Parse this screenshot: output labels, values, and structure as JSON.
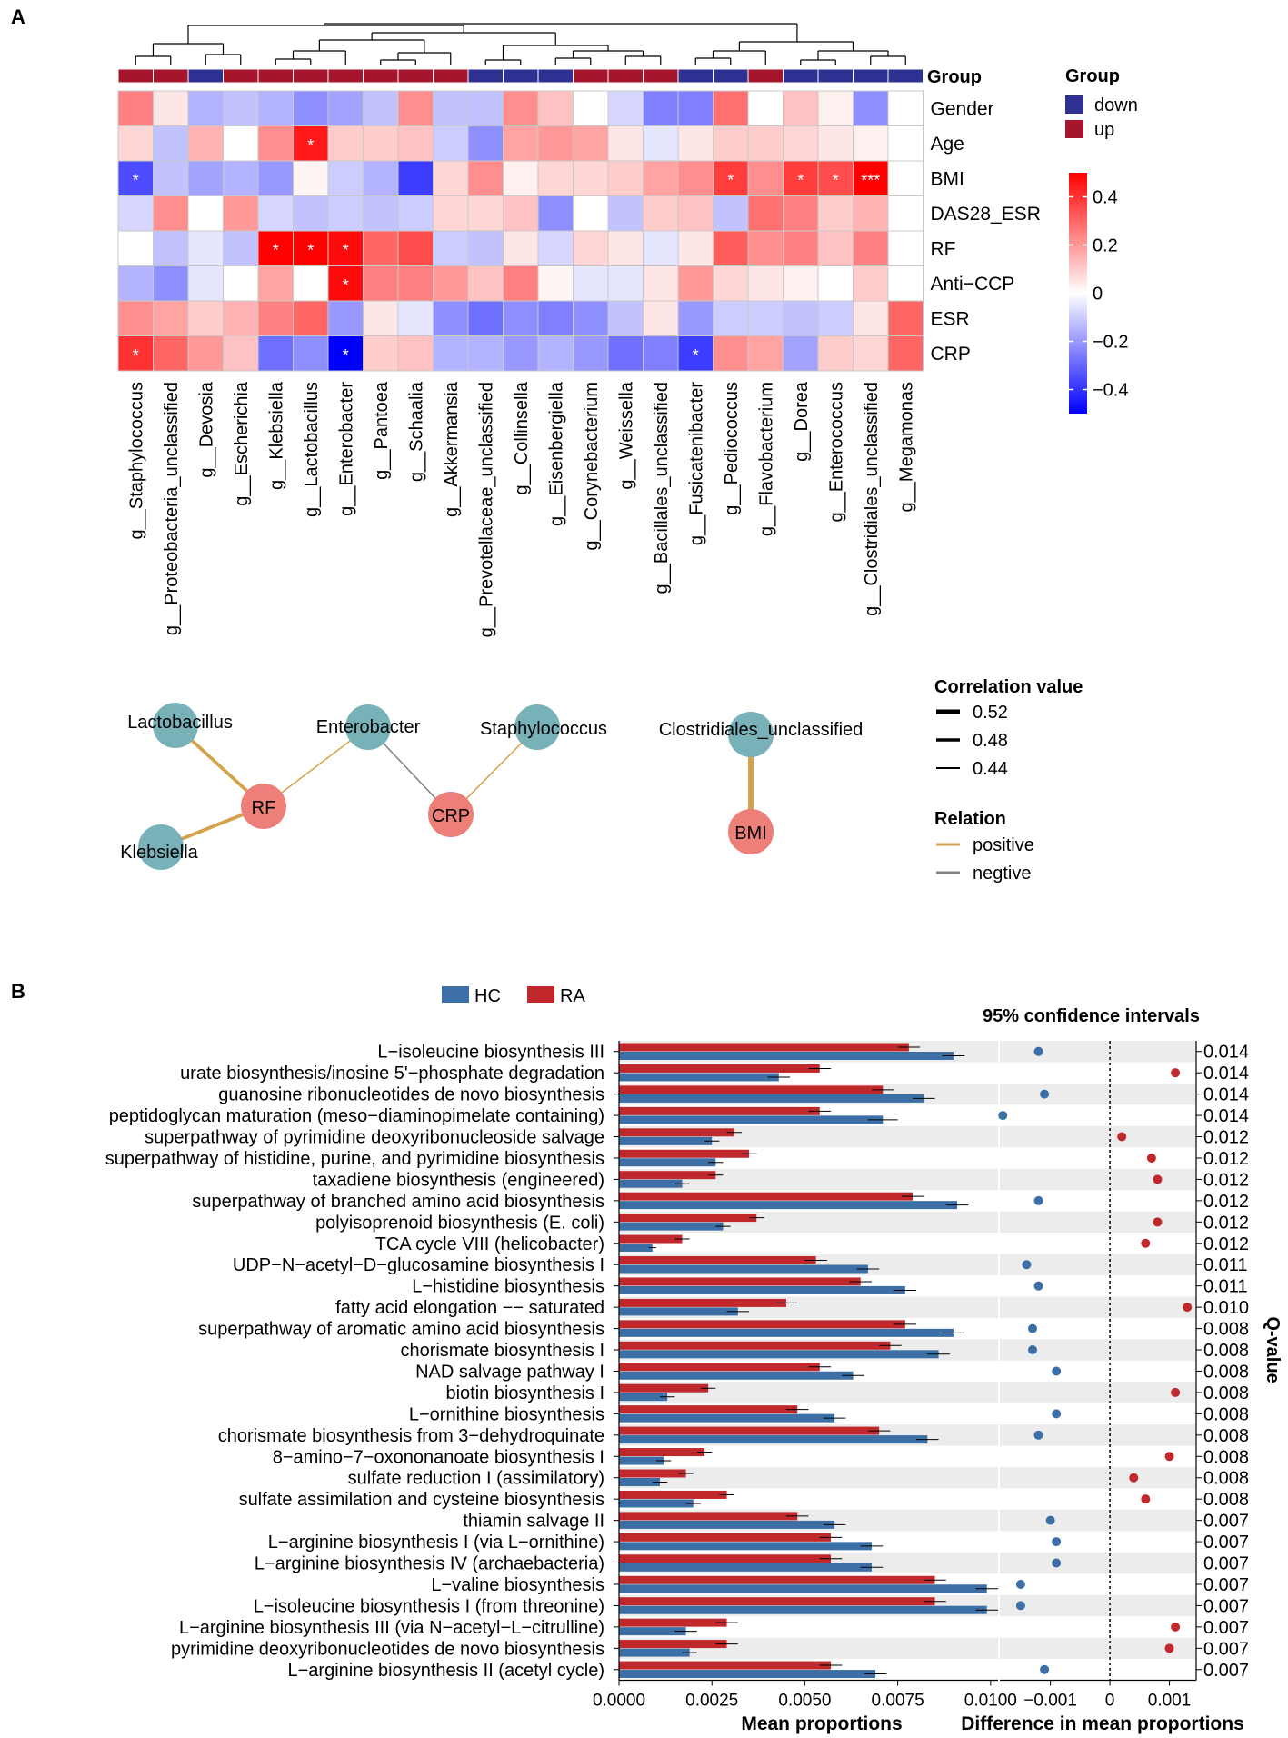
{
  "panel_a": {
    "label": "A",
    "group_legend": {
      "title": "Group",
      "down": "down",
      "up": "up",
      "down_color": "#2f3192",
      "up_color": "#a5152b"
    },
    "group_row_label": "Group",
    "colorbar": {
      "ticks": [
        "0.4",
        "0.2",
        "0",
        "−0.2",
        "−0.4"
      ],
      "min": -0.5,
      "max": 0.5
    },
    "network": {
      "legend_title": "Correlation value",
      "widths": [
        "0.52",
        "0.48",
        "0.44"
      ],
      "relation_title": "Relation",
      "positive": "positive",
      "negative": "negtive",
      "positive_color": "#d4a24a",
      "negative_color": "#808080",
      "nodes": [
        {
          "label": "Lactobacillus",
          "kind": "taxon"
        },
        {
          "label": "Klebsiella",
          "kind": "taxon"
        },
        {
          "label": "RF",
          "kind": "trait"
        },
        {
          "label": "Enterobacter",
          "kind": "taxon"
        },
        {
          "label": "CRP",
          "kind": "trait"
        },
        {
          "label": "Staphylococcus",
          "kind": "taxon"
        },
        {
          "label": "Clostridiales_unclassified",
          "kind": "taxon"
        },
        {
          "label": "BMI",
          "kind": "trait"
        }
      ],
      "edges": [
        {
          "from": "Lactobacillus",
          "to": "RF",
          "relation": "positive",
          "value": 0.48
        },
        {
          "from": "Klebsiella",
          "to": "RF",
          "relation": "positive",
          "value": 0.48
        },
        {
          "from": "Enterobacter",
          "to": "RF",
          "relation": "positive",
          "value": 0.44
        },
        {
          "from": "Enterobacter",
          "to": "CRP",
          "relation": "negative",
          "value": 0.44
        },
        {
          "from": "Staphylococcus",
          "to": "CRP",
          "relation": "positive",
          "value": 0.44
        },
        {
          "from": "Clostridiales_unclassified",
          "to": "BMI",
          "relation": "positive",
          "value": 0.52
        }
      ]
    }
  },
  "panel_b": {
    "label": "B",
    "legend": {
      "hc": "HC",
      "ra": "RA",
      "hc_color": "#3b6fa6",
      "ra_color": "#c0282b"
    },
    "ci_title": "95% confidence intervals",
    "q_label": "Q-value"
  },
  "chart_data": [
    {
      "type": "heatmap",
      "title": "",
      "rows": [
        "Gender",
        "Age",
        "BMI",
        "DAS28_ESR",
        "RF",
        "Anti−CCP",
        "ESR",
        "CRP"
      ],
      "columns": [
        "g__Staphylococcus",
        "g__Proteobacteria_unclassified",
        "g__Devosia",
        "g__Escherichia",
        "g__Klebsiella",
        "g__Lactobacillus",
        "g__Enterobacter",
        "g__Pantoea",
        "g__Schaalia",
        "g__Akkermansia",
        "g__Prevotellaceae_unclassified",
        "g__Collinsella",
        "g__Eisenbergiella",
        "g__Corynebacterium",
        "g__Weissella",
        "g__Bacillales_unclassified",
        "g__Fusicatenibacter",
        "g__Pediococcus",
        "g__Flavobacterium",
        "g__Dorea",
        "g__Enterococcus",
        "g__Clostridiales_unclassified",
        "g__Megamonas"
      ],
      "column_groups": [
        "up",
        "up",
        "down",
        "up",
        "up",
        "up",
        "up",
        "up",
        "up",
        "up",
        "down",
        "down",
        "down",
        "up",
        "up",
        "up",
        "down",
        "down",
        "up",
        "down",
        "down",
        "down",
        "down"
      ],
      "values": [
        [
          0.25,
          0.05,
          -0.15,
          -0.12,
          -0.15,
          -0.22,
          -0.18,
          -0.12,
          0.22,
          -0.12,
          -0.12,
          0.22,
          0.12,
          0.0,
          -0.08,
          -0.25,
          -0.25,
          0.28,
          0.0,
          0.12,
          0.03,
          -0.22,
          0.0
        ],
        [
          0.08,
          -0.12,
          0.15,
          0.0,
          0.22,
          0.45,
          0.1,
          0.1,
          0.12,
          -0.1,
          -0.22,
          0.18,
          0.2,
          0.18,
          0.05,
          -0.05,
          0.05,
          0.1,
          0.1,
          0.08,
          0.05,
          0.03,
          0.0
        ],
        [
          -0.35,
          -0.12,
          -0.18,
          -0.15,
          -0.2,
          0.02,
          -0.1,
          -0.15,
          -0.38,
          0.08,
          0.22,
          0.03,
          0.08,
          0.08,
          0.1,
          0.18,
          0.22,
          0.38,
          0.22,
          0.38,
          0.35,
          0.52,
          0.0
        ],
        [
          -0.08,
          0.22,
          0.0,
          0.2,
          -0.08,
          -0.12,
          -0.1,
          -0.12,
          -0.1,
          0.08,
          0.08,
          0.12,
          -0.22,
          0.0,
          -0.12,
          0.1,
          0.12,
          -0.12,
          0.28,
          0.25,
          0.1,
          0.15,
          0.0
        ],
        [
          0.0,
          -0.12,
          -0.05,
          -0.12,
          0.5,
          0.5,
          0.48,
          0.3,
          0.35,
          -0.1,
          -0.12,
          0.05,
          -0.08,
          0.08,
          0.05,
          -0.05,
          0.05,
          0.32,
          0.22,
          0.25,
          0.12,
          0.25,
          0.0
        ],
        [
          -0.15,
          -0.22,
          -0.05,
          0.0,
          0.18,
          0.0,
          0.48,
          0.25,
          0.25,
          0.2,
          0.12,
          0.25,
          0.02,
          -0.05,
          -0.05,
          0.05,
          0.2,
          0.08,
          0.05,
          0.03,
          0.0,
          0.1,
          0.0
        ],
        [
          0.22,
          0.18,
          0.1,
          0.15,
          0.25,
          0.3,
          -0.2,
          0.05,
          -0.05,
          -0.22,
          -0.28,
          -0.22,
          -0.25,
          -0.22,
          -0.12,
          0.05,
          -0.2,
          -0.1,
          -0.1,
          -0.12,
          -0.1,
          0.05,
          0.3
        ],
        [
          0.4,
          0.3,
          0.2,
          0.12,
          -0.28,
          -0.22,
          -0.55,
          0.1,
          0.12,
          -0.15,
          -0.15,
          -0.2,
          -0.15,
          -0.2,
          -0.28,
          -0.25,
          -0.38,
          0.22,
          0.18,
          -0.18,
          0.1,
          0.08,
          0.3
        ]
      ],
      "significance": [
        [
          "",
          "",
          "",
          "",
          "",
          "",
          "",
          "",
          "",
          "",
          "",
          "",
          "",
          "",
          "",
          "",
          "",
          "",
          "",
          "",
          "",
          "",
          ""
        ],
        [
          "",
          "",
          "",
          "",
          "",
          "*",
          "",
          "",
          "",
          "",
          "",
          "",
          "",
          "",
          "",
          "",
          "",
          "",
          "",
          "",
          "",
          "",
          ""
        ],
        [
          "*",
          "",
          "",
          "",
          "",
          "",
          "",
          "",
          "",
          "",
          "",
          "",
          "",
          "",
          "",
          "",
          "",
          "*",
          "",
          "*",
          "*",
          "***",
          ""
        ],
        [
          "",
          "",
          "",
          "",
          "",
          "",
          "",
          "",
          "",
          "",
          "",
          "",
          "",
          "",
          "",
          "",
          "",
          "",
          "",
          "",
          "",
          "",
          ""
        ],
        [
          "",
          "",
          "",
          "",
          "*",
          "*",
          "*",
          "",
          "",
          "",
          "",
          "",
          "",
          "",
          "",
          "",
          "",
          "",
          "",
          "",
          "",
          "",
          ""
        ],
        [
          "",
          "",
          "",
          "",
          "",
          "",
          "*",
          "",
          "",
          "",
          "",
          "",
          "",
          "",
          "",
          "",
          "",
          "",
          "",
          "",
          "",
          "",
          ""
        ],
        [
          "",
          "",
          "",
          "",
          "",
          "",
          "",
          "",
          "",
          "",
          "",
          "",
          "",
          "",
          "",
          "",
          "",
          "",
          "",
          "",
          "",
          "",
          ""
        ],
        [
          "*",
          "",
          "",
          "",
          "",
          "",
          "*",
          "",
          "",
          "",
          "",
          "",
          "",
          "",
          "",
          "",
          "*",
          "",
          "",
          "",
          "",
          "",
          ""
        ]
      ],
      "colorbar_range": [
        -0.5,
        0.5
      ]
    },
    {
      "type": "bar",
      "title": "",
      "xlabel": "Mean proportions",
      "xlim": [
        0,
        0.0102
      ],
      "xticks": [
        "0.0000",
        "0.0025",
        "0.0050",
        "0.0075",
        "0.0100"
      ],
      "categories": [
        "L−isoleucine biosynthesis III",
        "urate biosynthesis/inosine 5'−phosphate degradation",
        "guanosine ribonucleotides de novo biosynthesis",
        "peptidoglycan maturation (meso−diaminopimelate containing)",
        "superpathway of pyrimidine deoxyribonucleoside salvage",
        "superpathway of histidine, purine, and pyrimidine biosynthesis",
        "taxadiene biosynthesis (engineered)",
        "superpathway of branched amino acid biosynthesis",
        "polyisoprenoid biosynthesis (E. coli)",
        "TCA cycle VIII (helicobacter)",
        "UDP−N−acetyl−D−glucosamine biosynthesis I",
        "L−histidine biosynthesis",
        "fatty acid elongation −− saturated",
        "superpathway of aromatic amino acid biosynthesis",
        "chorismate biosynthesis I",
        "NAD salvage pathway I",
        "biotin biosynthesis I",
        "L−ornithine biosynthesis",
        "chorismate biosynthesis from 3−dehydroquinate",
        "8−amino−7−oxononanoate biosynthesis I",
        "sulfate reduction I (assimilatory)",
        "sulfate assimilation and cysteine biosynthesis",
        "thiamin salvage II",
        "L−arginine biosynthesis I (via L−ornithine)",
        "L−arginine biosynthesis IV (archaebacteria)",
        "L−valine biosynthesis",
        "L−isoleucine biosynthesis I (from threonine)",
        "L−arginine biosynthesis III (via N−acetyl−L−citrulline)",
        "pyrimidine deoxyribonucleotides de novo biosynthesis",
        "L−arginine biosynthesis II (acetyl cycle)"
      ],
      "series": [
        {
          "name": "RA",
          "values": [
            0.0078,
            0.0054,
            0.0071,
            0.0054,
            0.0031,
            0.0035,
            0.0026,
            0.0079,
            0.0037,
            0.0017,
            0.0053,
            0.0065,
            0.0045,
            0.0077,
            0.0073,
            0.0054,
            0.0024,
            0.0048,
            0.007,
            0.0023,
            0.0018,
            0.0029,
            0.0048,
            0.0057,
            0.0057,
            0.0085,
            0.0085,
            0.0029,
            0.0029,
            0.0057
          ],
          "errors": [
            0.0003,
            0.0003,
            0.0003,
            0.0003,
            0.0002,
            0.0002,
            0.0002,
            0.0003,
            0.0002,
            0.0002,
            0.0003,
            0.0003,
            0.0003,
            0.0003,
            0.0003,
            0.0003,
            0.0002,
            0.0003,
            0.0003,
            0.0002,
            0.0002,
            0.0002,
            0.0003,
            0.0003,
            0.0003,
            0.0003,
            0.0003,
            0.0003,
            0.0003,
            0.0003
          ]
        },
        {
          "name": "HC",
          "values": [
            0.009,
            0.0043,
            0.0082,
            0.0071,
            0.0025,
            0.0026,
            0.0017,
            0.0091,
            0.0028,
            0.0009,
            0.0067,
            0.0077,
            0.0032,
            0.009,
            0.0086,
            0.0063,
            0.0013,
            0.0058,
            0.0083,
            0.0012,
            0.0011,
            0.002,
            0.0058,
            0.0068,
            0.0068,
            0.0099,
            0.0099,
            0.0018,
            0.0019,
            0.0069
          ],
          "errors": [
            0.0003,
            0.0003,
            0.0003,
            0.0004,
            0.0002,
            0.0002,
            0.0002,
            0.0003,
            0.0002,
            0.0001,
            0.0003,
            0.0003,
            0.0003,
            0.0003,
            0.0003,
            0.0003,
            0.0002,
            0.0003,
            0.0003,
            0.0002,
            0.0002,
            0.0002,
            0.0003,
            0.0003,
            0.0003,
            0.0003,
            0.0003,
            0.0003,
            0.0002,
            0.0003
          ]
        }
      ]
    },
    {
      "type": "scatter",
      "title": "95% confidence intervals",
      "xlabel": "Difference in mean proportions",
      "xlim": [
        -0.00185,
        0.00145
      ],
      "xticks": [
        -0.001,
        0,
        0.001
      ],
      "xtick_labels": [
        "−0.001",
        "0",
        "0.001"
      ],
      "categories_ref": "same as bar chart rows",
      "differences": [
        -0.0012,
        0.0011,
        -0.0011,
        -0.0018,
        0.0002,
        0.0007,
        0.0008,
        -0.0012,
        0.0008,
        0.0006,
        -0.0014,
        -0.0012,
        0.0013,
        -0.0013,
        -0.0013,
        -0.0009,
        0.0011,
        -0.0009,
        -0.0012,
        0.001,
        0.0004,
        0.0006,
        -0.001,
        -0.0009,
        -0.0009,
        -0.0015,
        -0.0015,
        0.0011,
        0.001,
        -0.0011
      ],
      "colors_by_sign": {
        "negative": "#3b6fa6",
        "positive": "#c0282b"
      },
      "q_values": [
        "0.014",
        "0.014",
        "0.014",
        "0.014",
        "0.012",
        "0.012",
        "0.012",
        "0.012",
        "0.012",
        "0.012",
        "0.011",
        "0.011",
        "0.010",
        "0.008",
        "0.008",
        "0.008",
        "0.008",
        "0.008",
        "0.008",
        "0.008",
        "0.008",
        "0.008",
        "0.007",
        "0.007",
        "0.007",
        "0.007",
        "0.007",
        "0.007",
        "0.007",
        "0.007"
      ]
    }
  ]
}
